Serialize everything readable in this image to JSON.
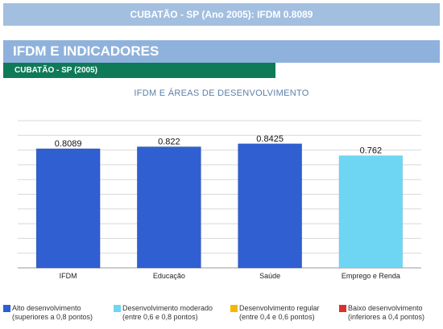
{
  "banner": {
    "title": "CUBATÃO - SP (Ano 2005): IFDM 0.8089"
  },
  "section": {
    "title": "IFDM E INDICADORES"
  },
  "subheader": {
    "label": "CUBATÃO - SP (2005)"
  },
  "chart_data": {
    "type": "bar",
    "title": "IFDM E ÁREAS DE DESENVOLVIMENTO",
    "categories": [
      "IFDM",
      "Educação",
      "Saúde",
      "Emprego e Renda"
    ],
    "values": [
      0.8089,
      0.822,
      0.8425,
      0.762
    ],
    "value_labels": [
      "0.8089",
      "0.822",
      "0.8425",
      "0.762"
    ],
    "bar_colors": [
      "#2f5fd0",
      "#2f5fd0",
      "#2f5fd0",
      "#6ed6f2"
    ],
    "ylim": [
      0,
      1
    ],
    "grid": true,
    "legend_position": "bottom"
  },
  "legend": [
    {
      "color": "#2f5fd0",
      "line1": "Alto desenvolvimento",
      "line2": "(superiores a 0,8 pontos)"
    },
    {
      "color": "#6ed6f2",
      "line1": "Desenvolvimento moderado",
      "line2": "(entre 0,6 e 0,8 pontos)"
    },
    {
      "color": "#f5b800",
      "line1": "Desenvolvimento regular",
      "line2": "(entre 0,4 e 0,6 pontos)"
    },
    {
      "color": "#d93030",
      "line1": "Baixo desenvolvimento",
      "line2": "(inferiores a 0,4 pontos)"
    }
  ]
}
